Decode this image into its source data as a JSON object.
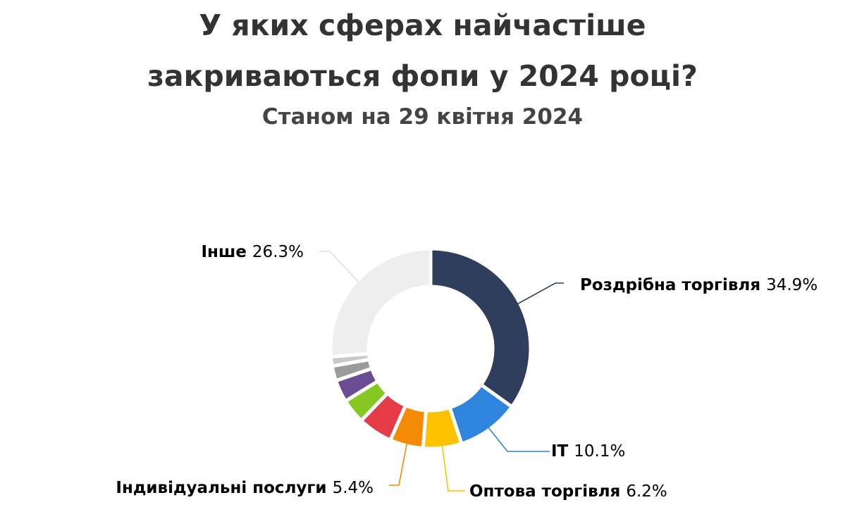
{
  "title_line1": "У яких сферах найчастіше",
  "title_line2": "закриваються фопи у 2024 році?",
  "subtitle": "Станом на 29 квітня 2024",
  "chart_data": {
    "type": "pie",
    "variant": "donut",
    "slices": [
      {
        "name": "Роздрібна торгівля",
        "value": 34.9,
        "value_label": "34.9%",
        "color": "#2e3e5c",
        "labeled": true
      },
      {
        "name": "IT",
        "value": 10.1,
        "value_label": "10.1%",
        "color": "#2f84db",
        "labeled": true
      },
      {
        "name": "Оптова торгівля",
        "value": 6.2,
        "value_label": "6.2%",
        "color": "#fcc200",
        "labeled": true
      },
      {
        "name": "Індивідуальні послуги",
        "value": 5.4,
        "value_label": "5.4%",
        "color": "#f58a07",
        "labeled": true
      },
      {
        "name": "",
        "value": 5.6,
        "value_label": "",
        "color": "#e43b47",
        "labeled": false
      },
      {
        "name": "",
        "value": 4.0,
        "value_label": "",
        "color": "#86c822",
        "labeled": false
      },
      {
        "name": "",
        "value": 3.6,
        "value_label": "",
        "color": "#6a4c93",
        "labeled": false
      },
      {
        "name": "",
        "value": 2.4,
        "value_label": "",
        "color": "#9b9b9b",
        "labeled": false
      },
      {
        "name": "",
        "value": 1.5,
        "value_label": "",
        "color": "#c9c9c9",
        "labeled": false
      },
      {
        "name": "Інше",
        "value": 26.3,
        "value_label": "26.3%",
        "color": "#eeeeee",
        "labeled": true
      }
    ]
  }
}
